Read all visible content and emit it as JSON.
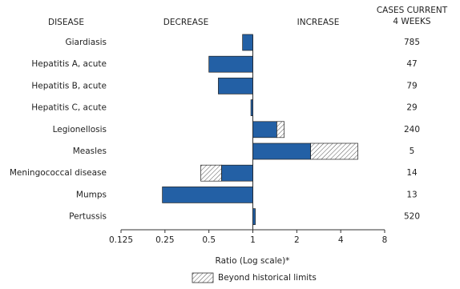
{
  "chart_data": {
    "type": "bar",
    "headers": {
      "disease": "DISEASE",
      "decrease": "DECREASE",
      "increase": "INCREASE",
      "cases": [
        "CASES CURRENT",
        "4 WEEKS"
      ]
    },
    "categories": [
      "Giardiasis",
      "Hepatitis A, acute",
      "Hepatitis B, acute",
      "Hepatitis C, acute",
      "Legionellosis",
      "Measles",
      "Meningococcal disease",
      "Mumps",
      "Pertussis"
    ],
    "values": [
      0.85,
      0.5,
      0.58,
      0.97,
      1.64,
      5.24,
      0.44,
      0.24,
      1.04
    ],
    "historical_limits": [
      null,
      null,
      null,
      null,
      1.46,
      2.49,
      0.61,
      null,
      null
    ],
    "cases": [
      785,
      47,
      79,
      29,
      240,
      5,
      14,
      13,
      520
    ],
    "color": "#2360a5",
    "xlim": [
      0.125,
      8
    ],
    "xticks": [
      0.125,
      0.25,
      0.5,
      1,
      2,
      4,
      8
    ],
    "log_scale": true,
    "xlabel": "Ratio (Log scale)*",
    "legend": "Beyond historical limits"
  }
}
